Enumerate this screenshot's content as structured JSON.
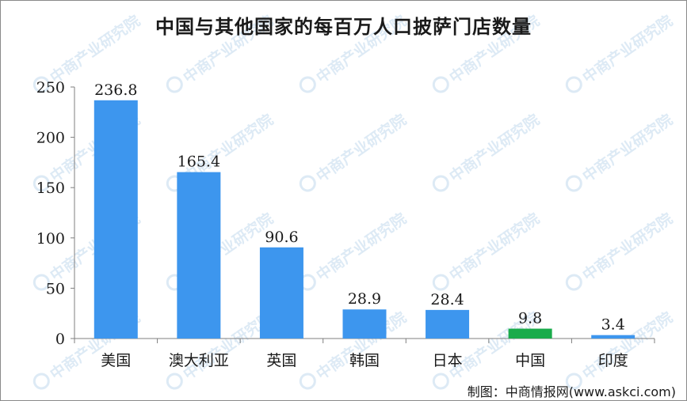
{
  "title": "中国与其他国家的每百万人口披萨门店数量",
  "source": "制图：中商情报网(www.askci.com)",
  "watermark": "中商产业研究院",
  "chart_data": {
    "type": "bar",
    "title": "中国与其他国家的每百万人口披萨门店数量",
    "categories": [
      "美国",
      "澳大利亚",
      "英国",
      "韩国",
      "日本",
      "中国",
      "印度"
    ],
    "values": [
      236.8,
      165.4,
      90.6,
      28.9,
      28.4,
      9.8,
      3.4
    ],
    "data_labels": [
      "236.8",
      "165.4",
      "90.6",
      "28.9",
      "28.4",
      "9.8",
      "3.4"
    ],
    "y_ticks": [
      "0",
      "50",
      "100",
      "150",
      "200",
      "250"
    ],
    "ylim": [
      0,
      250
    ],
    "bar_color": "#3d96ee",
    "highlight_category": "中国",
    "highlight_color": "#1aab4b",
    "grid": false,
    "legend": "none"
  }
}
